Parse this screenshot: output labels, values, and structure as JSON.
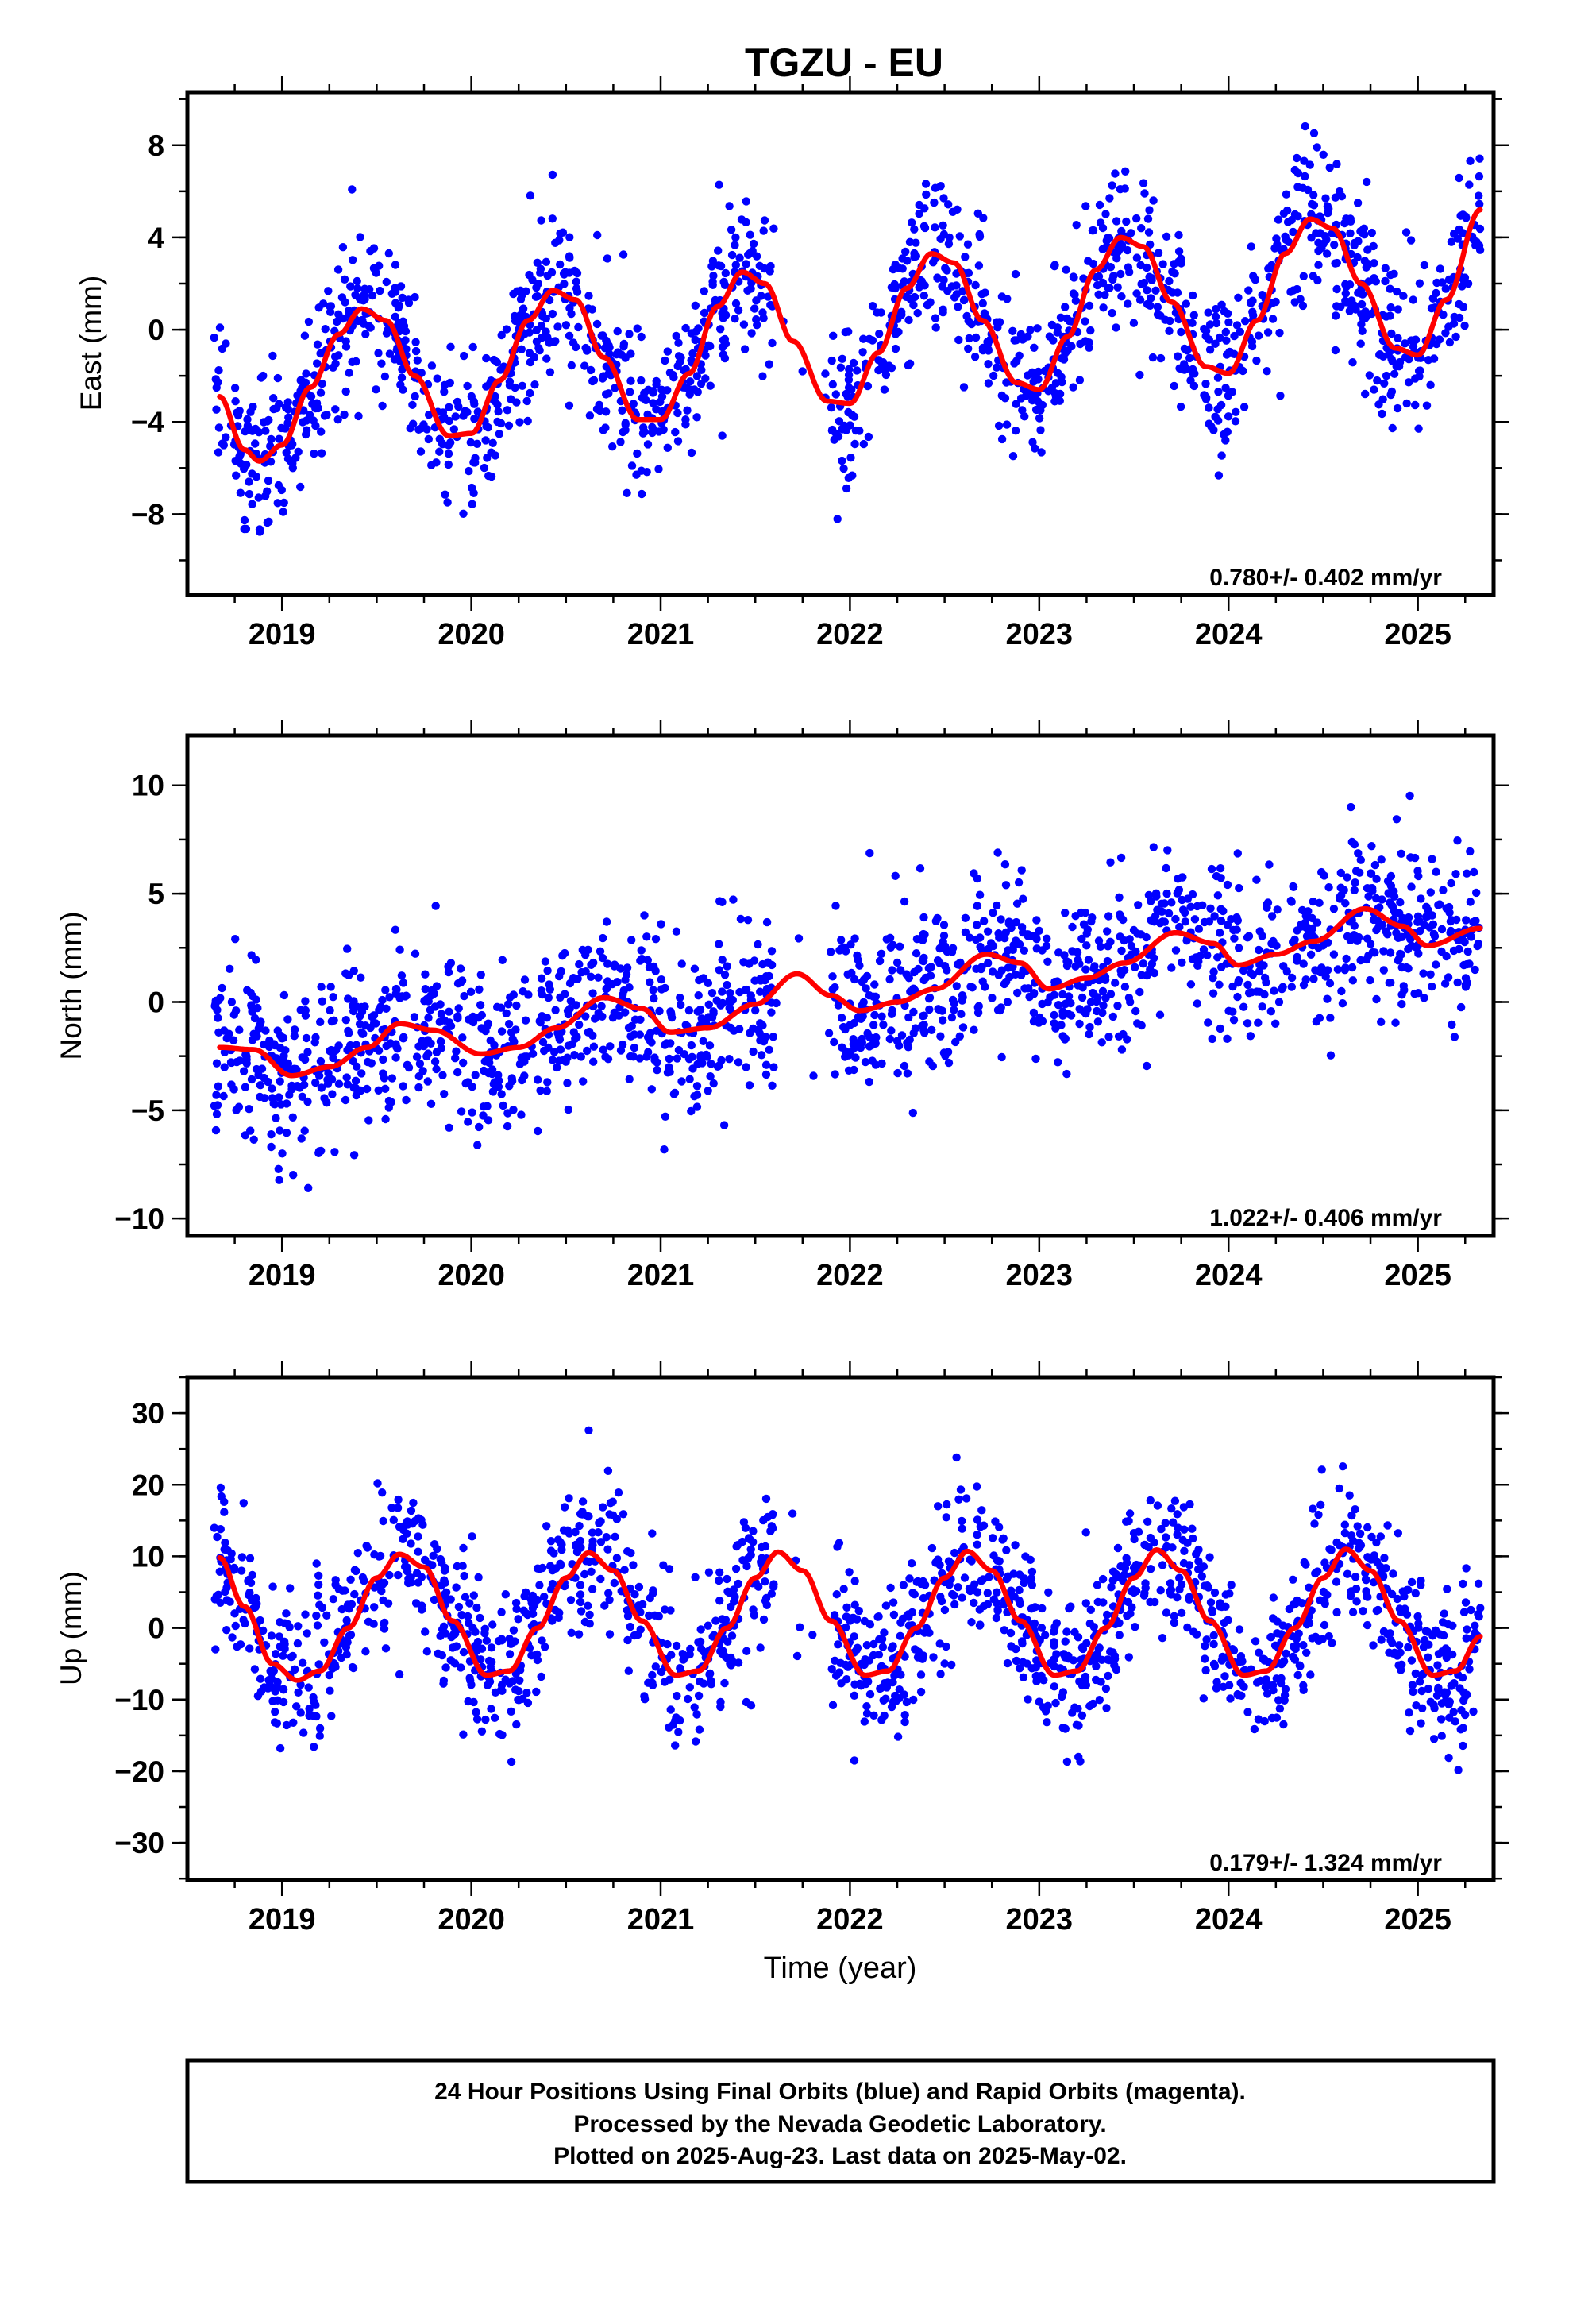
{
  "chart_data": [
    {
      "type": "scatter",
      "title": "TGZU - EU",
      "ylabel": "East (mm)",
      "xlabel": "",
      "xlim": [
        2018.5,
        2025.4
      ],
      "ylim": [
        -11.5,
        10.3
      ],
      "xticks": [
        2019,
        2020,
        2021,
        2022,
        2023,
        2024,
        2025
      ],
      "xtick_labels": [
        "2019",
        "2020",
        "2021",
        "2022",
        "2023",
        "2024",
        "2025"
      ],
      "yticks": [
        -8,
        -4,
        0,
        4,
        8
      ],
      "ytick_labels": [
        "−8",
        "−4",
        "0",
        "4",
        "8"
      ],
      "rate_label": "0.780+/- 0.402 mm/yr",
      "grid": false,
      "series": [
        {
          "name": "Final Orbits",
          "color": "#0000ff",
          "kind": "points",
          "points_approx": 1700
        },
        {
          "kind": "line",
          "color": "#ff0000",
          "x": [
            2018.67,
            2018.8,
            2018.88,
            2019.0,
            2019.15,
            2019.3,
            2019.42,
            2019.55,
            2019.7,
            2019.88,
            2020.0,
            2020.15,
            2020.3,
            2020.43,
            2020.55,
            2020.7,
            2020.88,
            2021.0,
            2021.15,
            2021.3,
            2021.43,
            2021.55,
            2021.7,
            2021.88,
            2022.0,
            2022.15,
            2022.3,
            2022.43,
            2022.55,
            2022.7,
            2022.88,
            2023.0,
            2023.15,
            2023.3,
            2023.43,
            2023.55,
            2023.7,
            2023.88,
            2024.0,
            2024.15,
            2024.3,
            2024.43,
            2024.55,
            2024.7,
            2024.88,
            2025.0,
            2025.15,
            2025.33
          ],
          "y": [
            -2.9,
            -5.2,
            -5.7,
            -5.0,
            -2.5,
            -0.2,
            0.9,
            0.4,
            -2.0,
            -4.6,
            -4.5,
            -2.2,
            0.4,
            1.7,
            1.3,
            -1.2,
            -3.9,
            -3.9,
            -1.9,
            1.0,
            2.5,
            2.0,
            -0.5,
            -3.1,
            -3.2,
            -1.0,
            1.8,
            3.3,
            2.9,
            0.4,
            -2.3,
            -2.6,
            -0.3,
            2.6,
            4.0,
            3.6,
            1.2,
            -1.6,
            -1.9,
            0.4,
            3.3,
            4.8,
            4.4,
            2.0,
            -0.8,
            -1.1,
            1.3,
            5.2
          ]
        }
      ]
    },
    {
      "type": "scatter",
      "title": "",
      "ylabel": "North (mm)",
      "xlabel": "",
      "xlim": [
        2018.5,
        2025.4
      ],
      "ylim": [
        -10.8,
        12.3
      ],
      "xticks": [
        2019,
        2020,
        2021,
        2022,
        2023,
        2024,
        2025
      ],
      "xtick_labels": [
        "2019",
        "2020",
        "2021",
        "2022",
        "2023",
        "2024",
        "2025"
      ],
      "yticks": [
        -10,
        -5,
        0,
        5,
        10
      ],
      "ytick_labels": [
        "−10",
        "−5",
        "0",
        "5",
        "10"
      ],
      "rate_label": "1.022+/- 0.406 mm/yr",
      "grid": false,
      "series": [
        {
          "name": "Final Orbits",
          "color": "#0000ff",
          "kind": "points",
          "points_approx": 1700
        },
        {
          "kind": "line",
          "color": "#ff0000",
          "x": [
            2018.67,
            2018.85,
            2019.05,
            2019.25,
            2019.45,
            2019.62,
            2019.8,
            2020.05,
            2020.25,
            2020.45,
            2020.7,
            2020.9,
            2021.05,
            2021.25,
            2021.5,
            2021.72,
            2021.9,
            2022.05,
            2022.25,
            2022.45,
            2022.72,
            2022.9,
            2023.05,
            2023.25,
            2023.45,
            2023.72,
            2023.92,
            2024.05,
            2024.25,
            2024.45,
            2024.72,
            2024.92,
            2025.05,
            2025.33
          ],
          "y": [
            -2.1,
            -2.2,
            -3.4,
            -3.0,
            -2.1,
            -1.0,
            -1.3,
            -2.4,
            -2.1,
            -1.2,
            0.2,
            -0.3,
            -1.4,
            -1.2,
            -0.1,
            1.3,
            0.3,
            -0.4,
            0.0,
            0.6,
            2.2,
            1.8,
            0.6,
            1.1,
            1.8,
            3.2,
            2.7,
            1.7,
            2.2,
            2.8,
            4.3,
            3.5,
            2.6,
            3.4
          ]
        }
      ]
    },
    {
      "type": "scatter",
      "title": "",
      "ylabel": "Up (mm)",
      "xlabel": "Time (year)",
      "xlim": [
        2018.5,
        2025.4
      ],
      "ylim": [
        -35.2,
        35.0
      ],
      "xticks": [
        2019,
        2020,
        2021,
        2022,
        2023,
        2024,
        2025
      ],
      "xtick_labels": [
        "2019",
        "2020",
        "2021",
        "2022",
        "2023",
        "2024",
        "2025"
      ],
      "yticks": [
        -30,
        -20,
        -10,
        0,
        10,
        20,
        30
      ],
      "ytick_labels": [
        "−30",
        "−20",
        "−10",
        "0",
        "10",
        "20",
        "30"
      ],
      "rate_label": "0.179+/- 1.324 mm/yr",
      "grid": false,
      "series": [
        {
          "name": "Final Orbits",
          "color": "#0000ff",
          "kind": "points",
          "points_approx": 1700
        },
        {
          "kind": "line",
          "color": "#ff0000",
          "x": [
            2018.67,
            2018.8,
            2018.95,
            2019.08,
            2019.2,
            2019.35,
            2019.5,
            2019.62,
            2019.75,
            2019.9,
            2020.08,
            2020.2,
            2020.35,
            2020.5,
            2020.62,
            2020.75,
            2020.9,
            2021.08,
            2021.2,
            2021.35,
            2021.5,
            2021.62,
            2021.75,
            2021.9,
            2022.08,
            2022.2,
            2022.35,
            2022.5,
            2022.62,
            2022.75,
            2022.9,
            2023.08,
            2023.2,
            2023.35,
            2023.5,
            2023.62,
            2023.75,
            2023.9,
            2024.08,
            2024.2,
            2024.35,
            2024.5,
            2024.62,
            2024.75,
            2024.9,
            2025.08,
            2025.2,
            2025.33
          ],
          "y": [
            9.8,
            3.0,
            -5.0,
            -7.3,
            -6.0,
            0.0,
            7.0,
            10.3,
            8.5,
            1.0,
            -6.6,
            -6.0,
            0.0,
            7.0,
            10.5,
            8.0,
            1.0,
            -6.6,
            -6.0,
            0.0,
            7.0,
            10.6,
            8.0,
            1.0,
            -6.6,
            -6.0,
            0.0,
            7.0,
            10.7,
            8.0,
            1.0,
            -6.6,
            -6.0,
            0.0,
            7.0,
            10.9,
            8.0,
            1.0,
            -6.6,
            -6.0,
            0.0,
            7.0,
            11.0,
            8.0,
            1.0,
            -6.6,
            -6.0,
            -1.2
          ]
        }
      ]
    }
  ],
  "footer": {
    "line1": "24 Hour Positions Using Final Orbits (blue) and Rapid Orbits (magenta).",
    "line2": "Processed by the Nevada Geodetic Laboratory.",
    "line3": "Plotted on 2025-Aug-23. Last data on 2025-May-02."
  }
}
